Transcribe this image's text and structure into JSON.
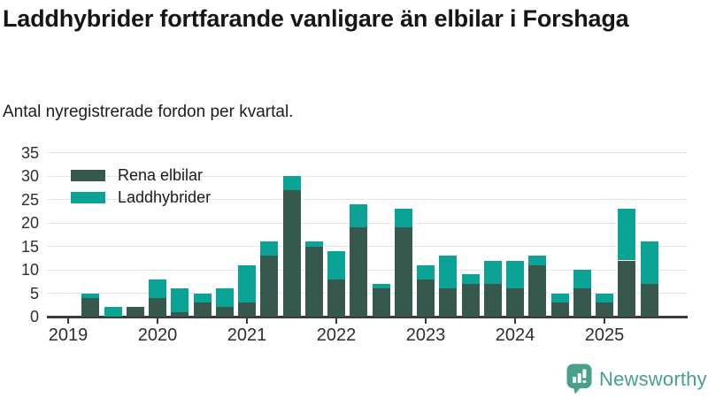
{
  "title": "Laddhybrider fortfarande vanligare än elbilar i Forshaga",
  "subtitle": "Antal nyregistrerade fordon per kvartal.",
  "legend": {
    "items": [
      {
        "label": "Rena elbilar",
        "color": "#36584d"
      },
      {
        "label": "Laddhybrider",
        "color": "#0aa396"
      }
    ]
  },
  "branding": {
    "name": "Newsworthy",
    "color": "#47a08c"
  },
  "colors": {
    "grid": "#e7e7e7",
    "axis": "#3b3b3b",
    "tick": "#2e2e2e",
    "background": "#ffffff"
  },
  "chart_data": {
    "type": "bar",
    "stacked": true,
    "title": "Laddhybrider fortfarande vanligare än elbilar i Forshaga",
    "subtitle": "Antal nyregistrerade fordon per kvartal.",
    "xlabel": "",
    "ylabel": "",
    "ylim": [
      0,
      35
    ],
    "y_ticks": [
      0,
      5,
      10,
      15,
      20,
      25,
      30,
      35
    ],
    "x_tick_labels": [
      "2019",
      "2020",
      "2021",
      "2022",
      "2023",
      "2024",
      "2025"
    ],
    "grid": true,
    "legend_position": "top-left-inside",
    "categories": [
      "2019 Q1",
      "2019 Q2",
      "2019 Q3",
      "2019 Q4",
      "2020 Q1",
      "2020 Q2",
      "2020 Q3",
      "2020 Q4",
      "2021 Q1",
      "2021 Q2",
      "2021 Q3",
      "2021 Q4",
      "2022 Q1",
      "2022 Q2",
      "2022 Q3",
      "2022 Q4",
      "2023 Q1",
      "2023 Q2",
      "2023 Q3",
      "2023 Q4",
      "2024 Q1",
      "2024 Q2",
      "2024 Q3",
      "2024 Q4",
      "2025 Q1",
      "2025 Q2",
      "2025 Q3"
    ],
    "series": [
      {
        "name": "Rena elbilar",
        "color": "#36584d",
        "values": [
          0,
          4,
          0,
          2,
          4,
          1,
          3,
          2,
          3,
          13,
          27,
          15,
          8,
          19,
          6,
          19,
          8,
          6,
          7,
          7,
          6,
          11,
          3,
          6,
          3,
          12,
          7
        ]
      },
      {
        "name": "Laddhybrider",
        "color": "#0aa396",
        "values": [
          0,
          1,
          2,
          0,
          4,
          5,
          2,
          4,
          8,
          3,
          3,
          1,
          6,
          5,
          1,
          4,
          3,
          7,
          2,
          5,
          6,
          2,
          2,
          4,
          2,
          11,
          9
        ]
      }
    ]
  }
}
